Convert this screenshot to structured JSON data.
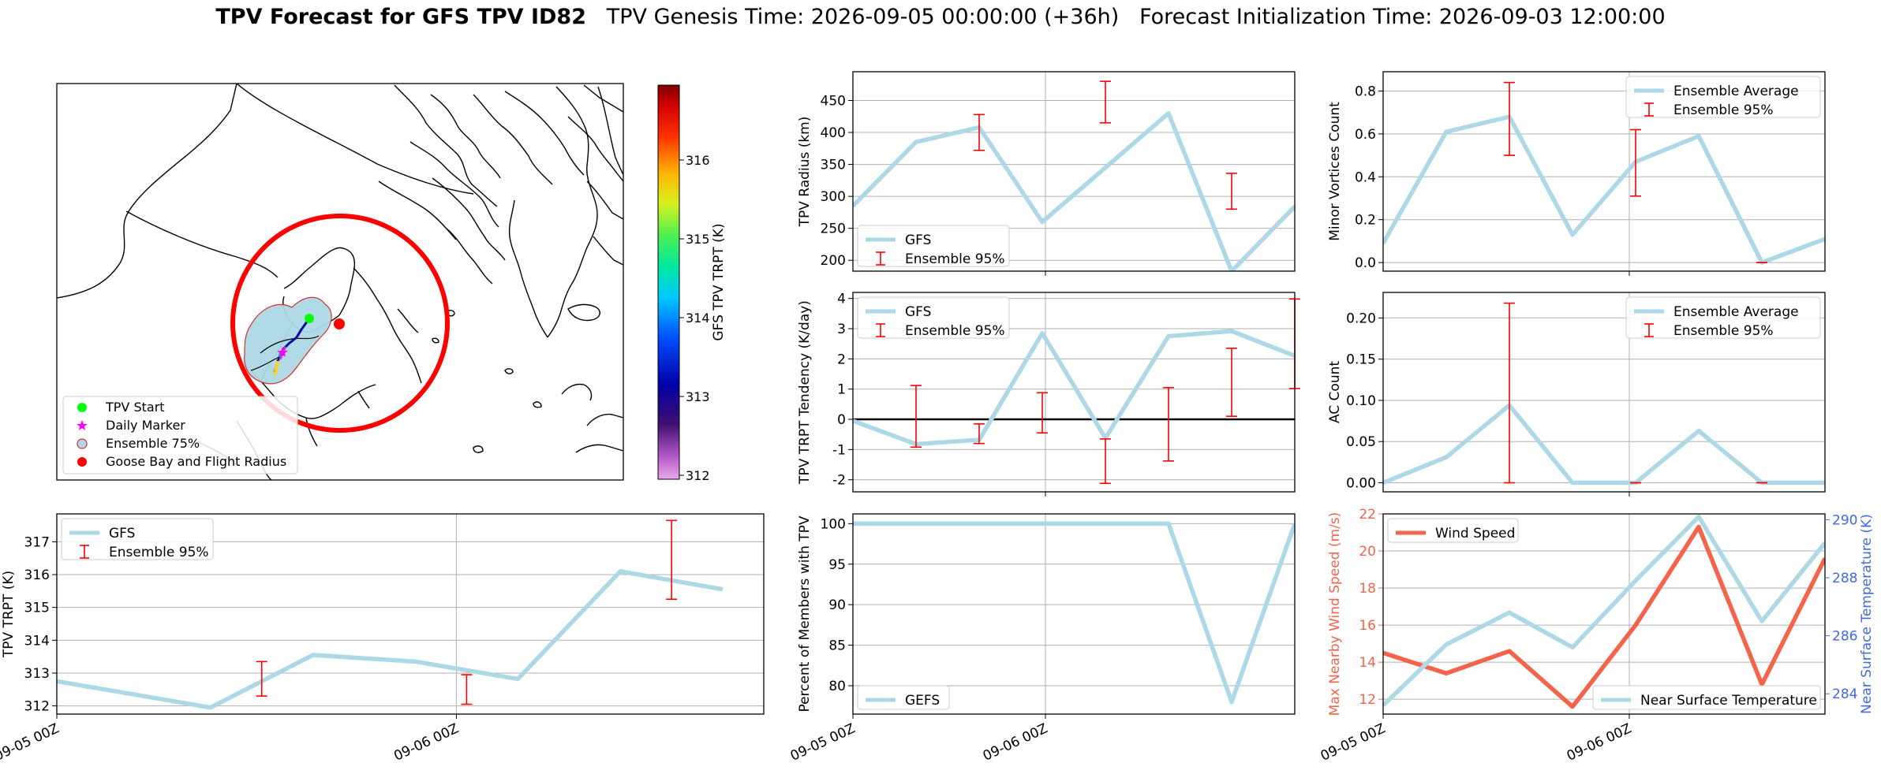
{
  "title": {
    "main": "TPV Forecast for GFS TPV ID82",
    "genesis": "TPV Genesis Time: 2026-09-05 00:00:00 (+36h)",
    "init": "Forecast Initialization Time: 2026-09-03 12:00:00"
  },
  "colors": {
    "light_blue": "#add8e6",
    "error_red": "#ff0000",
    "wind": "#f4644a",
    "temp_axis": "#4169e1"
  },
  "map": {
    "legend": [
      "TPV Start",
      "Daily Marker",
      "Ensemble 75%",
      "Goose Bay and Flight Radius"
    ],
    "colorbar": {
      "label": "GFS TPV TRPT (K)",
      "ticks": [
        312,
        313,
        314,
        315,
        316
      ],
      "range": [
        311.95,
        316.95
      ]
    }
  },
  "time_ticks": [
    "09-05 00Z",
    "09-06 00Z"
  ],
  "chart_data": [
    {
      "id": "radius",
      "type": "line",
      "ylabel": "TPV Radius (km)",
      "ylim": [
        183,
        495
      ],
      "yticks": [
        200,
        250,
        300,
        350,
        400,
        450
      ],
      "x": [
        0,
        1,
        2,
        3,
        4,
        5,
        6,
        7
      ],
      "series": [
        {
          "name": "GFS",
          "values": [
            285,
            385,
            408,
            260,
            345,
            430,
            183,
            284
          ]
        }
      ],
      "errorbars": {
        "name": "Ensemble 95%",
        "points": [
          [
            2,
            372,
            428
          ],
          [
            4,
            415,
            480
          ],
          [
            6,
            280,
            336
          ]
        ]
      },
      "legend": "bottom-left"
    },
    {
      "id": "minor",
      "type": "line",
      "ylabel": "Minor Vortices Count",
      "ylim": [
        -0.04,
        0.89
      ],
      "yticks": [
        0.0,
        0.2,
        0.4,
        0.6,
        0.8
      ],
      "x": [
        0,
        1,
        2,
        3,
        4,
        5,
        6,
        7
      ],
      "series": [
        {
          "name": "Ensemble Average",
          "values": [
            0.09,
            0.61,
            0.68,
            0.13,
            0.47,
            0.59,
            0.0,
            0.11
          ]
        }
      ],
      "errorbars": {
        "name": "Ensemble 95%",
        "points": [
          [
            2,
            0.5,
            0.84
          ],
          [
            4,
            0.31,
            0.62
          ],
          [
            6,
            0.0,
            0.0
          ]
        ]
      },
      "legend": "top-right"
    },
    {
      "id": "tendency",
      "type": "line",
      "ylabel": "TPV TRPT Tendency (K/day)",
      "ylim": [
        -2.4,
        4.2
      ],
      "yticks": [
        -2,
        -1,
        0,
        1,
        2,
        3,
        4
      ],
      "x": [
        0,
        1,
        2,
        3,
        4,
        5,
        6,
        7
      ],
      "series": [
        {
          "name": "GFS",
          "values": [
            -0.05,
            -0.82,
            -0.68,
            2.85,
            -0.62,
            2.75,
            2.92,
            2.1
          ]
        }
      ],
      "errorbars": {
        "name": "Ensemble 95%",
        "points": [
          [
            1,
            -0.92,
            1.12
          ],
          [
            2,
            -0.8,
            -0.15
          ],
          [
            3,
            -0.45,
            0.88
          ],
          [
            4,
            -2.12,
            -0.65
          ],
          [
            5,
            -1.38,
            1.05
          ],
          [
            6,
            0.1,
            2.35
          ],
          [
            7,
            1.02,
            3.98
          ]
        ]
      },
      "zero_line": true,
      "legend": "top-left"
    },
    {
      "id": "ac",
      "type": "line",
      "ylabel": "AC Count",
      "ylim": [
        -0.011,
        0.231
      ],
      "yticks": [
        0.0,
        0.05,
        0.1,
        0.15,
        0.2
      ],
      "x": [
        0,
        1,
        2,
        3,
        4,
        5,
        6,
        7
      ],
      "series": [
        {
          "name": "Ensemble Average",
          "values": [
            0.0,
            0.031,
            0.094,
            0.0,
            0.0,
            0.063,
            0.0,
            0.0
          ]
        }
      ],
      "errorbars": {
        "name": "Ensemble 95%",
        "points": [
          [
            2,
            0.0,
            0.218
          ],
          [
            4,
            0.0,
            0.0
          ],
          [
            6,
            0.0,
            0.0
          ]
        ]
      },
      "legend": "top-right"
    },
    {
      "id": "trpt",
      "type": "line",
      "ylabel": "TPV TRPT (K)",
      "ylim": [
        311.75,
        317.85
      ],
      "yticks": [
        312,
        313,
        314,
        315,
        316,
        317
      ],
      "x": [
        0,
        1.5,
        2.5,
        3.5,
        4.5,
        5.5,
        6.5
      ],
      "series": [
        {
          "name": "GFS",
          "values": [
            312.75,
            311.95,
            313.55,
            313.35,
            312.82,
            316.1,
            315.55
          ]
        }
      ],
      "errorbars": {
        "name": "Ensemble 95%",
        "points": [
          [
            2,
            312.3,
            313.35
          ],
          [
            4,
            312.05,
            312.95
          ],
          [
            6,
            315.25,
            317.65
          ]
        ]
      },
      "legend": "top-left"
    },
    {
      "id": "members",
      "type": "line",
      "ylabel": "Percent of Members with TPV",
      "ylim": [
        76.5,
        101.2
      ],
      "yticks": [
        80,
        85,
        90,
        95,
        100
      ],
      "x": [
        0,
        1,
        2,
        3,
        4,
        5,
        6,
        7
      ],
      "series": [
        {
          "name": "GEFS",
          "values": [
            100,
            100,
            100,
            100,
            100,
            100,
            78,
            100
          ]
        }
      ],
      "legend": "bottom-left"
    },
    {
      "id": "wind_temp",
      "type": "line",
      "ylabel": "Max Nearby Wind Speed (m/s)",
      "ylim": [
        11.2,
        22.0
      ],
      "yticks": [
        12,
        14,
        16,
        18,
        20,
        22
      ],
      "y2label": "Near Surface Temperature (K)",
      "y2lim": [
        283.3,
        290.2
      ],
      "y2ticks": [
        284,
        286,
        288,
        290
      ],
      "x": [
        0,
        1,
        2,
        3,
        4,
        5,
        6,
        7
      ],
      "series": [
        {
          "name": "Wind Speed",
          "values": [
            14.5,
            13.4,
            14.6,
            11.6,
            16.0,
            21.3,
            12.8,
            19.6
          ],
          "axis": "left"
        },
        {
          "name": "Near Surface Temperature",
          "values": [
            283.6,
            285.7,
            286.8,
            285.6,
            287.9,
            290.1,
            286.5,
            289.2
          ],
          "axis": "right"
        }
      ],
      "legend": "top-left / bottom-right"
    }
  ]
}
